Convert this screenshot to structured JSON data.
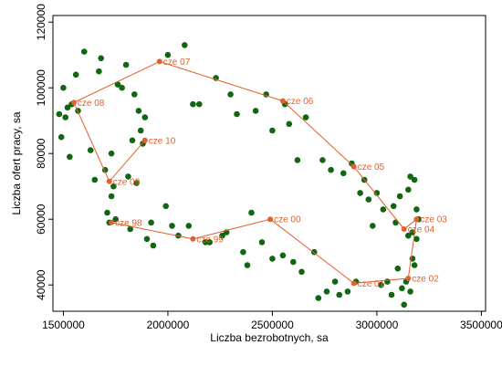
{
  "chart_data": {
    "type": "scatter",
    "title": "",
    "xlabel": "Liczba bezrobotnych, sa",
    "ylabel": "Liczba ofert pracy, sa",
    "xlim": [
      1450000,
      3520000
    ],
    "ylim": [
      32000,
      122000
    ],
    "x_ticks": [
      1500000,
      2000000,
      2500000,
      3000000,
      3500000
    ],
    "x_tick_labels": [
      "1500000",
      "2000000",
      "2500000",
      "3000000",
      "3500000"
    ],
    "y_ticks": [
      40000,
      60000,
      80000,
      100000,
      120000
    ],
    "y_tick_labels": [
      "40000",
      "60000",
      "80000",
      "100000",
      "120000"
    ],
    "grid": false,
    "colors": {
      "scatter": "#116611",
      "path": "#e06030",
      "label": "#e06030"
    },
    "series": [
      {
        "type": "scatter",
        "x": [
          1480000,
          1490000,
          1500000,
          1510000,
          1520000,
          1530000,
          1540000,
          1560000,
          1570000,
          1600000,
          1630000,
          1650000,
          1670000,
          1680000,
          1700000,
          1710000,
          1720000,
          1730000,
          1730000,
          1740000,
          1750000,
          1760000,
          1780000,
          1800000,
          1810000,
          1820000,
          1830000,
          1840000,
          1850000,
          1860000,
          1870000,
          1880000,
          1890000,
          1900000,
          1920000,
          1930000,
          1990000,
          2000000,
          2020000,
          2050000,
          2080000,
          2100000,
          2120000,
          2150000,
          2180000,
          2200000,
          2230000,
          2260000,
          2280000,
          2300000,
          2330000,
          2360000,
          2380000,
          2400000,
          2420000,
          2450000,
          2470000,
          2500000,
          2500000,
          2550000,
          2560000,
          2580000,
          2600000,
          2620000,
          2640000,
          2660000,
          2700000,
          2720000,
          2740000,
          2760000,
          2780000,
          2800000,
          2820000,
          2840000,
          2860000,
          2880000,
          2900000,
          2920000,
          2940000,
          2960000,
          2980000,
          3000000,
          3020000,
          3030000,
          3050000,
          3070000,
          3080000,
          3090000,
          3100000,
          3110000,
          3120000,
          3130000,
          3140000,
          3150000,
          3150000,
          3160000,
          3160000,
          3170000,
          3170000,
          3180000,
          3180000,
          3190000,
          3190000,
          3200000
        ],
        "y": [
          92000,
          85000,
          100000,
          91000,
          94000,
          79000,
          95000,
          104000,
          93000,
          111000,
          81000,
          72000,
          105000,
          109000,
          75000,
          62000,
          59000,
          67000,
          80000,
          70000,
          60000,
          101000,
          100000,
          107000,
          73000,
          57000,
          84000,
          98000,
          71000,
          93000,
          87000,
          83000,
          91000,
          54000,
          59000,
          52000,
          64000,
          110000,
          58000,
          55000,
          113000,
          58000,
          95000,
          95000,
          53000,
          53000,
          103000,
          55000,
          56000,
          98000,
          92000,
          50000,
          46000,
          62000,
          93000,
          53000,
          98000,
          48000,
          87000,
          49000,
          95000,
          89000,
          47000,
          78000,
          44000,
          91000,
          50000,
          36000,
          78000,
          38000,
          75000,
          41000,
          37000,
          74000,
          38000,
          77000,
          41000,
          68000,
          72000,
          66000,
          58000,
          68000,
          40000,
          63000,
          41000,
          37000,
          64000,
          59000,
          45000,
          67000,
          39000,
          34000,
          41000,
          55000,
          69000,
          38000,
          73000,
          48000,
          56000,
          46000,
          72000,
          63000,
          54000,
          60000
        ],
        "marker_color": "#116611"
      },
      {
        "type": "line",
        "name": "",
        "x": [
          2100000,
          2500000,
          2880000,
          3120000,
          3200000,
          3160000,
          3140000,
          3000000,
          2900000,
          2540000,
          1960000,
          1560000,
          1720000,
          1880000,
          1720000,
          1730000,
          2150000,
          2490000,
          2900000,
          3100000,
          3190000,
          3150000
        ],
        "y": [
          53000,
          60000,
          76000,
          68000,
          58000,
          52000,
          41000,
          40000,
          40000,
          96000,
          108000,
          96000,
          72000,
          84000,
          71000,
          59000,
          53000,
          60000,
          76000,
          68000,
          60000,
          58000
        ],
        "labels": [
          "cze 99",
          "cze 00",
          "cze 05",
          "cze 03",
          "cze 04",
          "cze 02",
          "cze 01",
          "cze 06",
          "cze 07",
          "cze 08",
          "cze 09",
          "cze 10",
          "cze 98"
        ],
        "marker_color": "#e06030",
        "line_color": "#e06030"
      }
    ],
    "path_points": [
      {
        "x": 1730000,
        "y": 59000,
        "label": "cze 98"
      },
      {
        "x": 2120000,
        "y": 54000,
        "label": "cze 99"
      },
      {
        "x": 2490000,
        "y": 60000,
        "label": "cze 00"
      },
      {
        "x": 2890000,
        "y": 40500,
        "label": "cze 01"
      },
      {
        "x": 3150000,
        "y": 42000,
        "label": "cze 02"
      },
      {
        "x": 3190000,
        "y": 60000,
        "label": "cze 03"
      },
      {
        "x": 3130000,
        "y": 57000,
        "label": "cze 04"
      },
      {
        "x": 2890000,
        "y": 76000,
        "label": "cze 05"
      },
      {
        "x": 2550000,
        "y": 96000,
        "label": "cze 06"
      },
      {
        "x": 1960000,
        "y": 108000,
        "label": "cze 07"
      },
      {
        "x": 1550000,
        "y": 95500,
        "label": "cze 08"
      },
      {
        "x": 1720000,
        "y": 71500,
        "label": "cze 09"
      },
      {
        "x": 1890000,
        "y": 84000,
        "label": "cze 10"
      }
    ]
  }
}
